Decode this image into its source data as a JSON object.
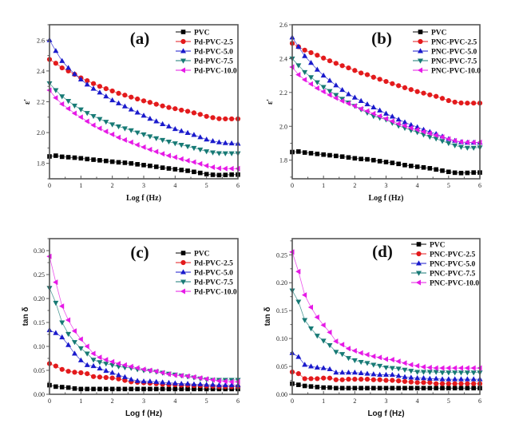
{
  "figure": {
    "colors": {
      "PVC": "#000000",
      "s25": "#e31a1c",
      "s50": "#1a1acc",
      "s75": "#177a75",
      "s100": "#e619e6"
    }
  },
  "chart_data": [
    {
      "id": "a",
      "type": "line",
      "panel_label": "(a)",
      "title": "",
      "xlabel": "Log f (Hz)",
      "ylabel": "ε'",
      "xlim": [
        0,
        6
      ],
      "ylim": [
        1.7,
        2.7
      ],
      "xticks": [
        0,
        1,
        2,
        3,
        4,
        5,
        6
      ],
      "yticks": [
        1.8,
        2.0,
        2.2,
        2.4,
        2.6
      ],
      "ytick_labels": [
        "1.8",
        "2.0",
        "2.2",
        "2.4",
        "2.6"
      ],
      "legend_position": "top-right",
      "x": [
        0,
        0.2,
        0.4,
        0.6,
        0.8,
        1.0,
        1.2,
        1.4,
        1.6,
        1.8,
        2.0,
        2.2,
        2.4,
        2.6,
        2.8,
        3.0,
        3.2,
        3.4,
        3.6,
        3.8,
        4.0,
        4.2,
        4.4,
        4.6,
        4.8,
        5.0,
        5.2,
        5.4,
        5.6,
        5.8,
        6.0
      ],
      "series": [
        {
          "name": "PVC",
          "marker": "square",
          "color_key": "PVC",
          "values": [
            1.845,
            1.85,
            1.843,
            1.84,
            1.837,
            1.833,
            1.828,
            1.824,
            1.82,
            1.816,
            1.811,
            1.807,
            1.804,
            1.8,
            1.794,
            1.789,
            1.784,
            1.778,
            1.772,
            1.767,
            1.762,
            1.757,
            1.752,
            1.745,
            1.738,
            1.73,
            1.726,
            1.724,
            1.725,
            1.727,
            1.727
          ]
        },
        {
          "name": "Pd-PVC-2.5",
          "marker": "circle",
          "color_key": "s25",
          "values": [
            2.475,
            2.45,
            2.42,
            2.4,
            2.378,
            2.355,
            2.337,
            2.318,
            2.3,
            2.285,
            2.27,
            2.255,
            2.243,
            2.23,
            2.218,
            2.206,
            2.196,
            2.184,
            2.173,
            2.163,
            2.155,
            2.146,
            2.138,
            2.128,
            2.118,
            2.105,
            2.097,
            2.09,
            2.089,
            2.089,
            2.089
          ]
        },
        {
          "name": "Pd-PVC-5.0",
          "marker": "triangle-up",
          "color_key": "s50",
          "values": [
            2.6,
            2.53,
            2.465,
            2.42,
            2.38,
            2.345,
            2.312,
            2.285,
            2.26,
            2.235,
            2.21,
            2.19,
            2.17,
            2.15,
            2.13,
            2.11,
            2.09,
            2.073,
            2.055,
            2.04,
            2.023,
            2.01,
            1.998,
            1.985,
            1.97,
            1.955,
            1.945,
            1.937,
            1.932,
            1.93,
            1.928
          ]
        },
        {
          "name": "Pd-PVC-7.5",
          "marker": "triangle-down",
          "color_key": "s75",
          "values": [
            2.32,
            2.275,
            2.235,
            2.205,
            2.175,
            2.15,
            2.127,
            2.107,
            2.088,
            2.07,
            2.053,
            2.04,
            2.027,
            2.015,
            2.0,
            1.988,
            1.975,
            1.963,
            1.952,
            1.941,
            1.93,
            1.92,
            1.91,
            1.9,
            1.89,
            1.878,
            1.871,
            1.866,
            1.865,
            1.865,
            1.865
          ]
        },
        {
          "name": "Pd-PVC-10.0",
          "marker": "triangle-left",
          "color_key": "s100",
          "values": [
            2.275,
            2.225,
            2.185,
            2.155,
            2.125,
            2.1,
            2.073,
            2.048,
            2.027,
            2.007,
            1.988,
            1.968,
            1.952,
            1.937,
            1.92,
            1.905,
            1.89,
            1.876,
            1.862,
            1.85,
            1.84,
            1.828,
            1.818,
            1.808,
            1.797,
            1.785,
            1.775,
            1.768,
            1.766,
            1.766,
            1.766
          ]
        }
      ]
    },
    {
      "id": "b",
      "type": "line",
      "panel_label": "(b)",
      "title": "",
      "xlabel": "Log f (Hz)",
      "ylabel": "ε'",
      "xlim": [
        0,
        6
      ],
      "ylim": [
        1.69,
        2.6
      ],
      "xticks": [
        0,
        1,
        2,
        3,
        4,
        5,
        6
      ],
      "yticks": [
        1.8,
        2.0,
        2.2,
        2.4,
        2.6
      ],
      "ytick_labels": [
        "1.8",
        "2.0",
        "2.2",
        "2.4",
        "2.6"
      ],
      "legend_position": "top-right",
      "x": [
        0,
        0.2,
        0.4,
        0.6,
        0.8,
        1.0,
        1.2,
        1.4,
        1.6,
        1.8,
        2.0,
        2.2,
        2.4,
        2.6,
        2.8,
        3.0,
        3.2,
        3.4,
        3.6,
        3.8,
        4.0,
        4.2,
        4.4,
        4.6,
        4.8,
        5.0,
        5.2,
        5.4,
        5.6,
        5.8,
        6.0
      ],
      "series": [
        {
          "name": "PVC",
          "marker": "square",
          "color_key": "PVC",
          "values": [
            1.848,
            1.851,
            1.845,
            1.841,
            1.837,
            1.833,
            1.829,
            1.825,
            1.821,
            1.816,
            1.811,
            1.807,
            1.805,
            1.8,
            1.794,
            1.789,
            1.784,
            1.778,
            1.771,
            1.766,
            1.761,
            1.757,
            1.752,
            1.745,
            1.738,
            1.731,
            1.726,
            1.724,
            1.725,
            1.727,
            1.727
          ]
        },
        {
          "name": "PNC-PVC-2.5",
          "marker": "circle",
          "color_key": "s25",
          "values": [
            2.49,
            2.47,
            2.45,
            2.435,
            2.42,
            2.403,
            2.387,
            2.372,
            2.358,
            2.345,
            2.33,
            2.315,
            2.305,
            2.29,
            2.278,
            2.265,
            2.252,
            2.24,
            2.228,
            2.217,
            2.205,
            2.196,
            2.186,
            2.177,
            2.165,
            2.152,
            2.143,
            2.138,
            2.137,
            2.137,
            2.137
          ]
        },
        {
          "name": "PNC-PVC-5.0",
          "marker": "triangle-up",
          "color_key": "s50",
          "values": [
            2.525,
            2.47,
            2.415,
            2.375,
            2.335,
            2.3,
            2.27,
            2.242,
            2.215,
            2.19,
            2.17,
            2.15,
            2.13,
            2.112,
            2.094,
            2.075,
            2.058,
            2.04,
            2.024,
            2.008,
            1.995,
            1.98,
            1.967,
            1.955,
            1.94,
            1.925,
            1.915,
            1.907,
            1.904,
            1.904,
            1.904
          ]
        },
        {
          "name": "PNC-PVC-7.5",
          "marker": "triangle-down",
          "color_key": "s75",
          "values": [
            2.4,
            2.36,
            2.32,
            2.29,
            2.26,
            2.232,
            2.208,
            2.185,
            2.162,
            2.14,
            2.12,
            2.1,
            2.08,
            2.06,
            2.05,
            2.04,
            2.02,
            2.003,
            1.99,
            1.977,
            1.965,
            1.951,
            1.938,
            1.927,
            1.913,
            1.9,
            1.887,
            1.878,
            1.873,
            1.873,
            1.875
          ]
        },
        {
          "name": "PNC-PVC-10.0",
          "marker": "triangle-left",
          "color_key": "s100",
          "values": [
            2.35,
            2.305,
            2.275,
            2.25,
            2.225,
            2.205,
            2.185,
            2.167,
            2.15,
            2.135,
            2.12,
            2.103,
            2.09,
            2.075,
            2.06,
            2.045,
            2.03,
            2.015,
            2.003,
            1.99,
            1.98,
            1.968,
            1.958,
            1.947,
            1.937,
            1.925,
            1.915,
            1.908,
            1.905,
            1.905,
            1.905
          ]
        }
      ]
    },
    {
      "id": "c",
      "type": "line",
      "panel_label": "(c)",
      "title": "",
      "xlabel": "Log f (Hz)",
      "ylabel": "tan δ",
      "xlim": [
        0,
        6
      ],
      "ylim": [
        0,
        0.325
      ],
      "xticks": [
        0,
        1,
        2,
        3,
        4,
        5,
        6
      ],
      "yticks": [
        0,
        0.05,
        0.1,
        0.15,
        0.2,
        0.25,
        0.3
      ],
      "ytick_labels": [
        "0.00",
        "0.05",
        "0.10",
        "0.15",
        "0.20",
        "0.25",
        "0.30"
      ],
      "legend_position": "top-right",
      "x": [
        0,
        0.2,
        0.4,
        0.6,
        0.8,
        1.0,
        1.2,
        1.4,
        1.6,
        1.8,
        2.0,
        2.2,
        2.4,
        2.6,
        2.8,
        3.0,
        3.2,
        3.4,
        3.6,
        3.8,
        4.0,
        4.2,
        4.4,
        4.6,
        4.8,
        5.0,
        5.2,
        5.4,
        5.6,
        5.8,
        6.0
      ],
      "series": [
        {
          "name": "PVC",
          "marker": "square",
          "color_key": "PVC",
          "values": [
            0.019,
            0.016,
            0.015,
            0.014,
            0.012,
            0.011,
            0.011,
            0.011,
            0.011,
            0.011,
            0.011,
            0.011,
            0.011,
            0.011,
            0.011,
            0.011,
            0.011,
            0.011,
            0.011,
            0.011,
            0.011,
            0.011,
            0.011,
            0.011,
            0.011,
            0.011,
            0.011,
            0.011,
            0.011,
            0.011,
            0.011
          ]
        },
        {
          "name": "Pd-PVC-2.5",
          "marker": "circle",
          "color_key": "s25",
          "values": [
            0.064,
            0.059,
            0.052,
            0.048,
            0.046,
            0.045,
            0.043,
            0.037,
            0.036,
            0.035,
            0.034,
            0.032,
            0.029,
            0.026,
            0.025,
            0.024,
            0.023,
            0.022,
            0.021,
            0.02,
            0.02,
            0.019,
            0.019,
            0.018,
            0.018,
            0.017,
            0.017,
            0.016,
            0.016,
            0.016,
            0.016
          ]
        },
        {
          "name": "Pd-PVC-5.0",
          "marker": "triangle-up",
          "color_key": "s50",
          "values": [
            0.134,
            0.128,
            0.119,
            0.103,
            0.085,
            0.071,
            0.061,
            0.059,
            0.054,
            0.049,
            0.045,
            0.04,
            0.036,
            0.031,
            0.028,
            0.027,
            0.027,
            0.026,
            0.025,
            0.024,
            0.023,
            0.022,
            0.022,
            0.021,
            0.021,
            0.02,
            0.02,
            0.019,
            0.019,
            0.019,
            0.019
          ]
        },
        {
          "name": "Pd-PVC-7.5",
          "marker": "triangle-down",
          "color_key": "s75",
          "values": [
            0.222,
            0.191,
            0.15,
            0.126,
            0.109,
            0.096,
            0.085,
            0.072,
            0.067,
            0.064,
            0.061,
            0.058,
            0.056,
            0.055,
            0.052,
            0.05,
            0.049,
            0.047,
            0.045,
            0.043,
            0.041,
            0.039,
            0.037,
            0.035,
            0.033,
            0.031,
            0.03,
            0.03,
            0.03,
            0.03,
            0.03
          ]
        },
        {
          "name": "Pd-PVC-10.0",
          "marker": "triangle-left",
          "color_key": "s100",
          "values": [
            0.288,
            0.234,
            0.184,
            0.155,
            0.132,
            0.115,
            0.1,
            0.085,
            0.077,
            0.072,
            0.068,
            0.064,
            0.061,
            0.058,
            0.055,
            0.052,
            0.05,
            0.048,
            0.045,
            0.042,
            0.04,
            0.039,
            0.038,
            0.036,
            0.034,
            0.032,
            0.03,
            0.028,
            0.027,
            0.026,
            0.026
          ]
        }
      ]
    },
    {
      "id": "d",
      "type": "line",
      "panel_label": "(d)",
      "title": "",
      "xlabel": "Log f (Hz)",
      "ylabel": "tan δ",
      "xlim": [
        0,
        6
      ],
      "ylim": [
        0,
        0.279
      ],
      "xticks": [
        0,
        1,
        2,
        3,
        4,
        5,
        6
      ],
      "yticks": [
        0,
        0.05,
        0.1,
        0.15,
        0.2,
        0.25
      ],
      "ytick_labels": [
        "0.00",
        "0.05",
        "0.10",
        "0.15",
        "0.20",
        "0.25"
      ],
      "legend_position": "top-right",
      "x": [
        0,
        0.2,
        0.4,
        0.6,
        0.8,
        1.0,
        1.2,
        1.4,
        1.6,
        1.8,
        2.0,
        2.2,
        2.4,
        2.6,
        2.8,
        3.0,
        3.2,
        3.4,
        3.6,
        3.8,
        4.0,
        4.2,
        4.4,
        4.6,
        4.8,
        5.0,
        5.2,
        5.4,
        5.6,
        5.8,
        6.0
      ],
      "series": [
        {
          "name": "PVC",
          "marker": "square",
          "color_key": "PVC",
          "values": [
            0.019,
            0.017,
            0.015,
            0.014,
            0.013,
            0.012,
            0.012,
            0.011,
            0.011,
            0.011,
            0.011,
            0.011,
            0.011,
            0.011,
            0.011,
            0.011,
            0.011,
            0.011,
            0.011,
            0.011,
            0.011,
            0.011,
            0.011,
            0.011,
            0.011,
            0.011,
            0.011,
            0.011,
            0.011,
            0.011,
            0.011
          ]
        },
        {
          "name": "PNC-PVC-2.5",
          "marker": "circle",
          "color_key": "s25",
          "values": [
            0.04,
            0.037,
            0.028,
            0.028,
            0.028,
            0.029,
            0.029,
            0.026,
            0.026,
            0.027,
            0.027,
            0.027,
            0.027,
            0.026,
            0.026,
            0.025,
            0.025,
            0.024,
            0.023,
            0.022,
            0.021,
            0.021,
            0.021,
            0.019,
            0.019,
            0.019,
            0.019,
            0.019,
            0.019,
            0.019,
            0.019
          ]
        },
        {
          "name": "PNC-PVC-5.0",
          "marker": "triangle-up",
          "color_key": "s50",
          "values": [
            0.074,
            0.067,
            0.053,
            0.05,
            0.048,
            0.047,
            0.045,
            0.039,
            0.039,
            0.039,
            0.039,
            0.038,
            0.037,
            0.036,
            0.035,
            0.035,
            0.035,
            0.033,
            0.031,
            0.03,
            0.029,
            0.029,
            0.028,
            0.028,
            0.027,
            0.027,
            0.027,
            0.027,
            0.027,
            0.027,
            0.027
          ]
        },
        {
          "name": "PNC-PVC-7.5",
          "marker": "triangle-down",
          "color_key": "s75",
          "values": [
            0.186,
            0.166,
            0.133,
            0.118,
            0.105,
            0.096,
            0.088,
            0.076,
            0.072,
            0.065,
            0.061,
            0.058,
            0.056,
            0.053,
            0.051,
            0.048,
            0.047,
            0.046,
            0.044,
            0.042,
            0.04,
            0.04,
            0.04,
            0.04,
            0.039,
            0.039,
            0.039,
            0.039,
            0.039,
            0.039,
            0.039
          ]
        },
        {
          "name": "PNC-PVC-10.0",
          "marker": "triangle-left",
          "color_key": "s100",
          "values": [
            0.255,
            0.22,
            0.178,
            0.156,
            0.138,
            0.124,
            0.111,
            0.095,
            0.089,
            0.082,
            0.078,
            0.074,
            0.071,
            0.068,
            0.066,
            0.063,
            0.062,
            0.059,
            0.056,
            0.053,
            0.051,
            0.049,
            0.048,
            0.047,
            0.047,
            0.047,
            0.047,
            0.047,
            0.047,
            0.047,
            0.047
          ]
        }
      ]
    }
  ]
}
